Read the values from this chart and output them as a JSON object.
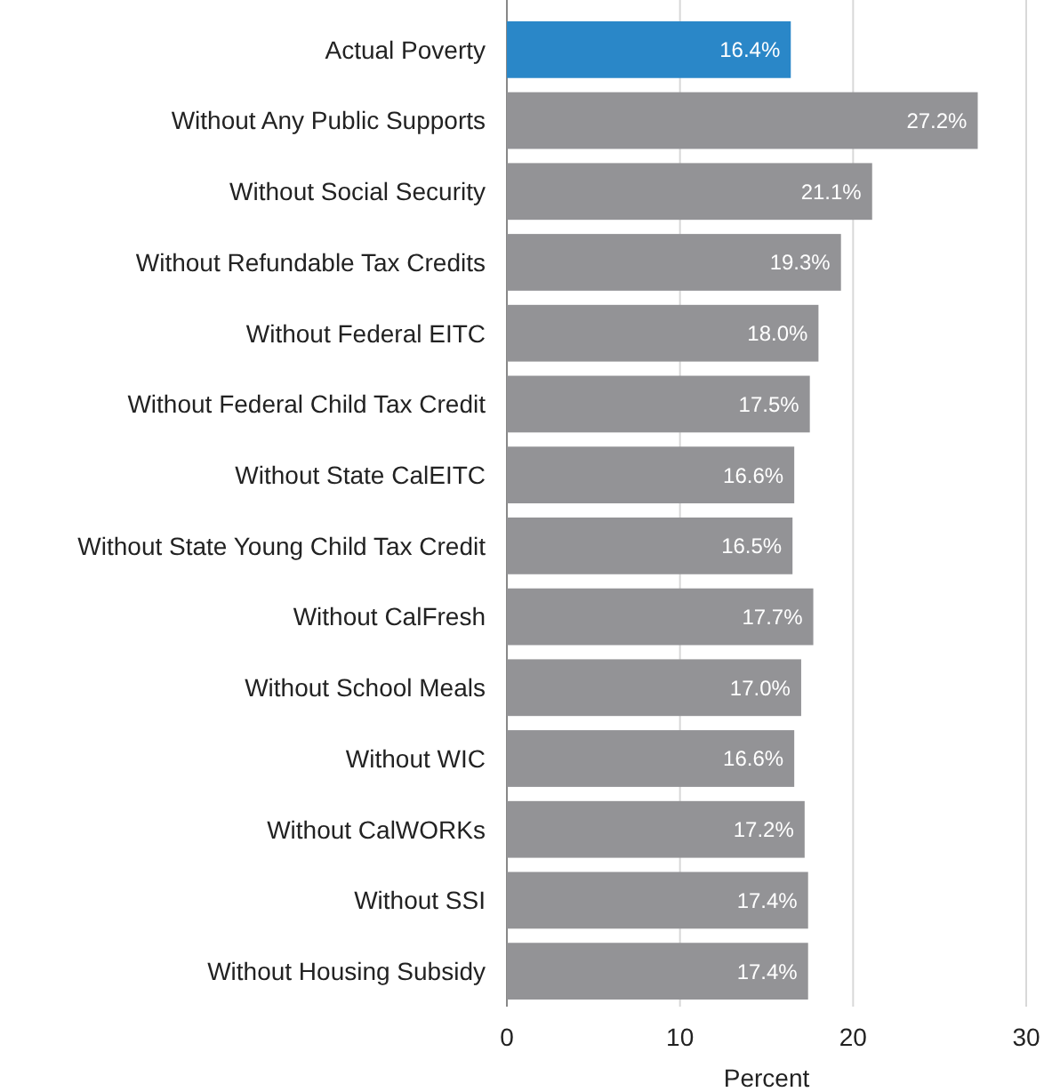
{
  "chart_data": {
    "type": "bar",
    "orientation": "horizontal",
    "xlabel": "Percent",
    "categories": [
      "Actual Poverty",
      "Without Any Public Supports",
      "Without Social Security",
      "Without Refundable Tax Credits",
      "Without Federal EITC",
      "Without Federal Child Tax Credit",
      "Without State CalEITC",
      "Without State Young Child Tax Credit",
      "Without CalFresh",
      "Without School Meals",
      "Without WIC",
      "Without CalWORKs",
      "Without SSI",
      "Without Housing Subsidy"
    ],
    "values": [
      16.4,
      27.2,
      21.1,
      19.3,
      18.0,
      17.5,
      16.6,
      16.5,
      17.7,
      17.0,
      16.6,
      17.2,
      17.4,
      17.4
    ],
    "colors": [
      "#2a87c8",
      "#939396",
      "#939396",
      "#939396",
      "#939396",
      "#939396",
      "#939396",
      "#939396",
      "#939396",
      "#939396",
      "#939396",
      "#939396",
      "#939396",
      "#939396"
    ],
    "value_labels": [
      "16.4%",
      "27.2%",
      "21.1%",
      "19.3%",
      "18.0%",
      "17.5%",
      "16.6%",
      "16.5%",
      "17.7%",
      "17.0%",
      "16.6%",
      "17.2%",
      "17.4%",
      "17.4%"
    ],
    "xlim": [
      0,
      30
    ],
    "xticks": [
      0,
      10,
      20,
      30
    ],
    "grid": "x"
  }
}
